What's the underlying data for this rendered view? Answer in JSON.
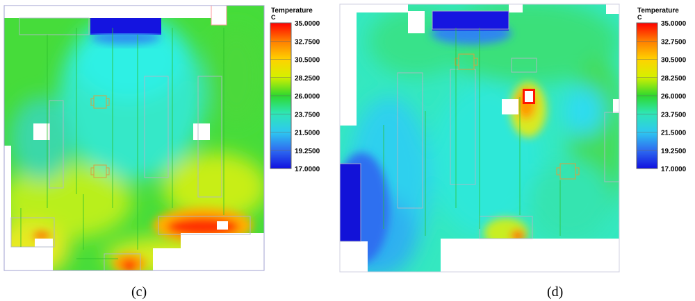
{
  "panels": [
    {
      "caption": "(c)",
      "colorbar": {
        "title": "Temperature",
        "unit": "C",
        "ticks": [
          "35.0000",
          "32.7500",
          "30.5000",
          "28.2500",
          "26.0000",
          "23.7500",
          "21.5000",
          "19.2500",
          "17.0000"
        ]
      }
    },
    {
      "caption": "(d)",
      "colorbar": {
        "title": "Temperature",
        "unit": "C",
        "ticks": [
          "35.0000",
          "32.7500",
          "30.5000",
          "28.2500",
          "26.0000",
          "23.7500",
          "21.5000",
          "19.2500",
          "17.0000"
        ]
      }
    }
  ],
  "colors": {
    "hot": "#ff1e00",
    "warm": "#f5e600",
    "mid": "#2fd72f",
    "cool": "#2ee6d2",
    "cold": "#1414e6"
  }
}
